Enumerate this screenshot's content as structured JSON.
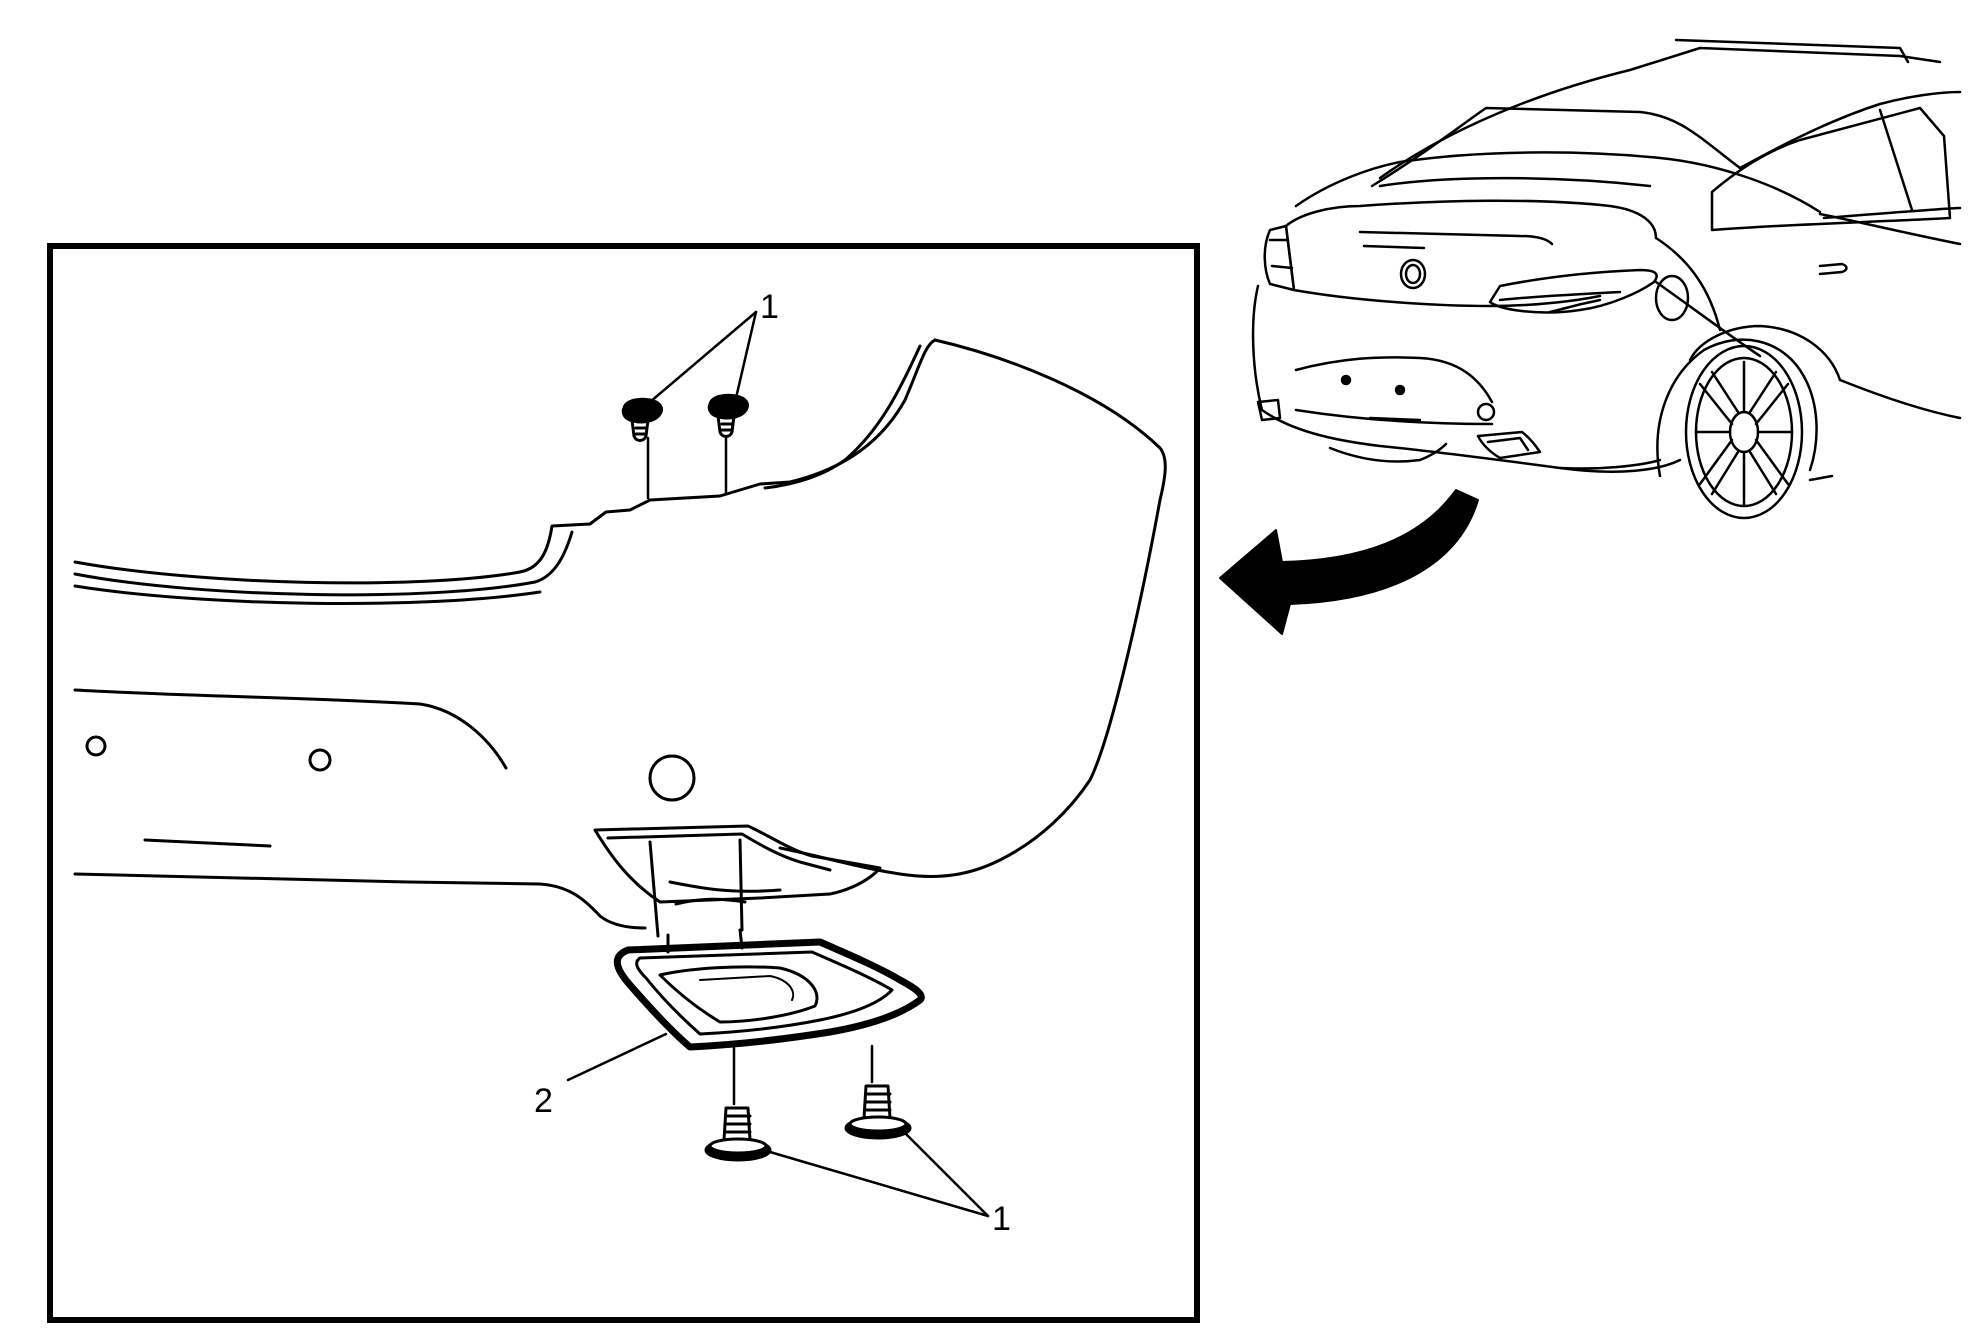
{
  "callouts": {
    "fastener_top": "1",
    "trim_bezel": "2",
    "fastener_bottom": "1"
  },
  "colors": {
    "ink": "#000000",
    "paper": "#ffffff"
  }
}
